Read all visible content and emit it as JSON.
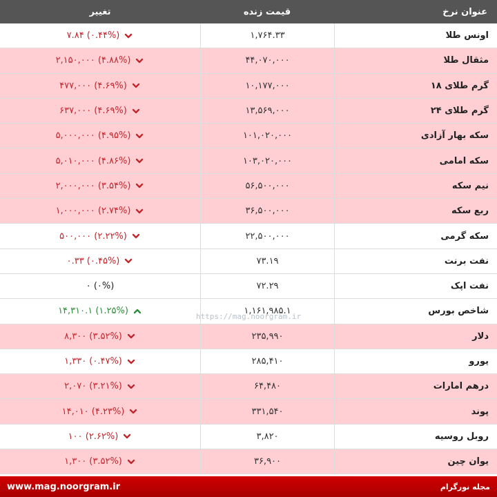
{
  "header": {
    "title_col": "عنوان نرخ",
    "price_col": "قیمت زنده",
    "change_col": "تغییر"
  },
  "rows": [
    {
      "title": "اونس طلا",
      "price": "۱,۷۶۴.۳۳",
      "change": "۷.۸۴ (۰.۴۴%)",
      "trend": "down",
      "bg": "white"
    },
    {
      "title": "مثقال طلا",
      "price": "۴۴,۰۷۰,۰۰۰",
      "change": "۲,۱۵۰,۰۰۰ (۴.۸۸%)",
      "trend": "down",
      "bg": "red"
    },
    {
      "title": "گرم طلای ۱۸",
      "price": "۱۰,۱۷۷,۰۰۰",
      "change": "۴۷۷,۰۰۰ (۴.۶۹%)",
      "trend": "down",
      "bg": "red"
    },
    {
      "title": "گرم طلای ۲۴",
      "price": "۱۳,۵۶۹,۰۰۰",
      "change": "۶۳۷,۰۰۰ (۴.۶۹%)",
      "trend": "down",
      "bg": "red"
    },
    {
      "title": "سکه بهار آزادی",
      "price": "۱۰۱,۰۲۰,۰۰۰",
      "change": "۵,۰۰۰,۰۰۰ (۴.۹۵%)",
      "trend": "down",
      "bg": "red"
    },
    {
      "title": "سکه امامی",
      "price": "۱۰۳,۰۲۰,۰۰۰",
      "change": "۵,۰۱۰,۰۰۰ (۴.۸۶%)",
      "trend": "down",
      "bg": "red"
    },
    {
      "title": "نیم سکه",
      "price": "۵۶,۵۰۰,۰۰۰",
      "change": "۲,۰۰۰,۰۰۰ (۳.۵۴%)",
      "trend": "down",
      "bg": "red"
    },
    {
      "title": "ربع سکه",
      "price": "۳۶,۵۰۰,۰۰۰",
      "change": "۱,۰۰۰,۰۰۰ (۲.۷۴%)",
      "trend": "down",
      "bg": "red"
    },
    {
      "title": "سکه گرمی",
      "price": "۲۲,۵۰۰,۰۰۰",
      "change": "۵۰۰,۰۰۰ (۲.۲۲%)",
      "trend": "down",
      "bg": "white"
    },
    {
      "title": "نفت برنت",
      "price": "۷۳.۱۹",
      "change": "۰.۳۳ (۰.۴۵%)",
      "trend": "down",
      "bg": "white"
    },
    {
      "title": "نفت اپک",
      "price": "۷۲.۲۹",
      "change": "۰ (۰%)",
      "trend": "flat",
      "bg": "white"
    },
    {
      "title": "شاخص بورس",
      "price": "۱,۱۶۱,۹۸۵.۱",
      "change": "۱۴,۳۱۰.۱ (۱.۲۵%)",
      "trend": "up",
      "bg": "white"
    },
    {
      "title": "دلار",
      "price": "۲۳۵,۹۹۰",
      "change": "۸,۳۰۰ (۳.۵۲%)",
      "trend": "down",
      "bg": "red"
    },
    {
      "title": "یورو",
      "price": "۲۸۵,۴۱۰",
      "change": "۱,۳۳۰ (۰.۴۷%)",
      "trend": "down",
      "bg": "white"
    },
    {
      "title": "درهم امارات",
      "price": "۶۴,۴۸۰",
      "change": "۲,۰۷۰ (۳.۲۱%)",
      "trend": "down",
      "bg": "red"
    },
    {
      "title": "پوند",
      "price": "۳۳۱,۵۴۰",
      "change": "۱۴,۰۱۰ (۴.۲۳%)",
      "trend": "down",
      "bg": "red"
    },
    {
      "title": "روبل روسیه",
      "price": "۳,۸۲۰",
      "change": "۱۰۰ (۲.۶۲%)",
      "trend": "down",
      "bg": "white"
    },
    {
      "title": "یوان چین",
      "price": "۳۶,۹۰۰",
      "change": "۱,۳۰۰ (۳.۵۲%)",
      "trend": "down",
      "bg": "red"
    }
  ],
  "watermark": "https://mag.noorgram.ir",
  "footer": {
    "brand": "مجله نورگرام",
    "url": "www.mag.noorgram.ir"
  },
  "colors": {
    "header_bg": "#555555",
    "row_red": "#ffcfd4",
    "down": "#c0272d",
    "up": "#2e8b3a",
    "footer_bg": "#c00000"
  },
  "icons": {
    "down": "chevron-down-icon",
    "up": "chevron-up-icon"
  }
}
